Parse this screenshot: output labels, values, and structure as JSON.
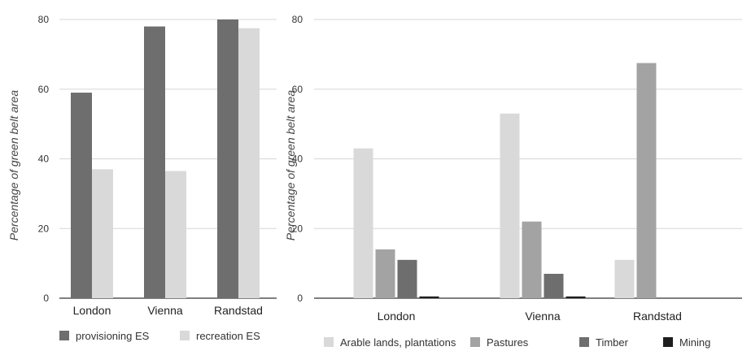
{
  "chart_data": [
    {
      "type": "bar",
      "ylabel": "Percentage of green belt area",
      "ylim": [
        0,
        80
      ],
      "yticks": [
        0,
        20,
        40,
        60,
        80
      ],
      "grid": true,
      "legend_position": "bottom",
      "categories": [
        "London",
        "Vienna",
        "Randstad"
      ],
      "series": [
        {
          "name": "provisioning ES",
          "color": "#6e6e6e",
          "values": [
            59,
            78,
            80
          ]
        },
        {
          "name": "recreation ES",
          "color": "#d9d9d9",
          "values": [
            37,
            36.5,
            77.5
          ]
        }
      ]
    },
    {
      "type": "bar",
      "ylabel": "Percentage of green belt area",
      "ylim": [
        0,
        80
      ],
      "yticks": [
        0,
        20,
        40,
        60,
        80
      ],
      "grid": true,
      "legend_position": "bottom",
      "categories": [
        "London",
        "Vienna",
        "Randstad"
      ],
      "series": [
        {
          "name": "Arable lands, plantations",
          "color": "#d9d9d9",
          "values": [
            43,
            53,
            11
          ]
        },
        {
          "name": "Pastures",
          "color": "#a3a3a3",
          "values": [
            14,
            22,
            67.5
          ]
        },
        {
          "name": "Timber",
          "color": "#6e6e6e",
          "values": [
            11,
            7,
            0
          ]
        },
        {
          "name": "Mining",
          "color": "#1e1e1e",
          "values": [
            0.5,
            0.5,
            0
          ]
        }
      ]
    }
  ]
}
